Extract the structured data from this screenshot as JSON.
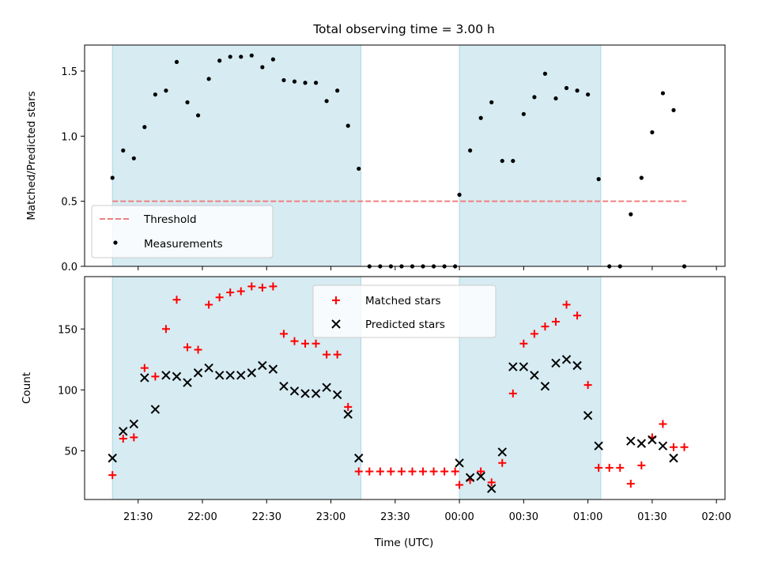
{
  "figure": {
    "title": "Total observing time = 3.00 h"
  },
  "time_axis": {
    "xlabel": "Time (UTC)",
    "tick_labels": [
      "21:30",
      "22:00",
      "22:30",
      "23:00",
      "23:30",
      "00:00",
      "00:30",
      "01:00",
      "01:30",
      "02:00"
    ],
    "tick_minutes": [
      1290,
      1320,
      1350,
      1380,
      1410,
      1440,
      1470,
      1500,
      1530,
      1560
    ],
    "xlim_minutes": [
      1265,
      1564
    ]
  },
  "colors": {
    "shade": "#add8e6",
    "threshold": "#f08080",
    "matched": "#ff0000",
    "predicted": "#000000",
    "measurement": "#000000"
  },
  "chart_data": [
    {
      "type": "scatter",
      "panel": "top",
      "title": "Total observing time = 3.00 h",
      "ylabel": "Matched/Predicted stars",
      "ylim": [
        0,
        1.7
      ],
      "yticks": [
        0.0,
        0.5,
        1.0,
        1.5
      ],
      "ytick_labels": [
        "0.0",
        "0.5",
        "1.0",
        "1.5"
      ],
      "legend": {
        "placement": "lower-left",
        "entries": [
          "Threshold",
          "Measurements"
        ]
      },
      "shaded_intervals": [
        [
          1278,
          1394
        ],
        [
          1440,
          1506
        ]
      ],
      "threshold": {
        "name": "Threshold",
        "value": 0.5,
        "x_range": [
          1278,
          1546
        ],
        "style": "dashed"
      },
      "series": [
        {
          "name": "Measurements",
          "x": [
            1278,
            1283,
            1288,
            1293,
            1298,
            1303,
            1308,
            1313,
            1318,
            1323,
            1328,
            1333,
            1338,
            1343,
            1348,
            1353,
            1358,
            1363,
            1368,
            1373,
            1378,
            1383,
            1388,
            1393,
            1398,
            1403,
            1408,
            1413,
            1418,
            1423,
            1428,
            1433,
            1438,
            1440,
            1445,
            1450,
            1455,
            1460,
            1465,
            1470,
            1475,
            1480,
            1485,
            1490,
            1495,
            1500,
            1505,
            1510,
            1515,
            1520,
            1525,
            1530,
            1535,
            1540,
            1545
          ],
          "y": [
            0.68,
            0.89,
            0.83,
            1.07,
            1.32,
            1.35,
            1.57,
            1.26,
            1.16,
            1.44,
            1.58,
            1.61,
            1.61,
            1.62,
            1.53,
            1.59,
            1.43,
            1.42,
            1.41,
            1.41,
            1.27,
            1.35,
            1.08,
            0.75,
            0.0,
            0.0,
            0.0,
            0.0,
            0.0,
            0.0,
            0.0,
            0.0,
            0.0,
            0.55,
            0.89,
            1.14,
            1.26,
            0.81,
            0.81,
            1.17,
            1.3,
            1.48,
            1.29,
            1.37,
            1.35,
            1.32,
            0.67,
            0.0,
            0.0,
            0.4,
            0.68,
            1.03,
            1.33,
            1.2,
            0.0
          ]
        }
      ]
    },
    {
      "type": "scatter",
      "panel": "bottom",
      "xlabel": "Time (UTC)",
      "ylabel": "Count",
      "ylim": [
        10,
        193
      ],
      "yticks": [
        50,
        100,
        150
      ],
      "ytick_labels": [
        "50",
        "100",
        "150"
      ],
      "legend": {
        "placement": "upper-center",
        "entries": [
          "Matched stars",
          "Predicted stars"
        ]
      },
      "shaded_intervals": [
        [
          1278,
          1394
        ],
        [
          1440,
          1506
        ]
      ],
      "series": [
        {
          "name": "Matched stars",
          "marker": "+",
          "x": [
            1278,
            1283,
            1288,
            1293,
            1298,
            1303,
            1308,
            1313,
            1318,
            1323,
            1328,
            1333,
            1338,
            1343,
            1348,
            1353,
            1358,
            1363,
            1368,
            1373,
            1378,
            1383,
            1388,
            1393,
            1398,
            1403,
            1408,
            1413,
            1418,
            1423,
            1428,
            1433,
            1438,
            1440,
            1445,
            1450,
            1455,
            1460,
            1465,
            1470,
            1475,
            1480,
            1485,
            1490,
            1495,
            1500,
            1505,
            1510,
            1515,
            1520,
            1525,
            1530,
            1535,
            1540,
            1545
          ],
          "y": [
            30,
            60,
            61,
            118,
            111,
            150,
            174,
            135,
            133,
            170,
            176,
            180,
            181,
            185,
            184,
            185,
            146,
            140,
            138,
            138,
            129,
            129,
            86,
            33,
            33,
            33,
            33,
            33,
            33,
            33,
            33,
            33,
            33,
            22,
            26,
            33,
            24,
            40,
            97,
            138,
            146,
            152,
            156,
            170,
            161,
            104,
            36,
            36,
            36,
            23,
            38,
            61,
            72,
            53,
            53
          ]
        },
        {
          "name": "Predicted stars",
          "marker": "x",
          "x": [
            1278,
            1283,
            1288,
            1293,
            1298,
            1303,
            1308,
            1313,
            1318,
            1323,
            1328,
            1333,
            1338,
            1343,
            1348,
            1353,
            1358,
            1363,
            1368,
            1373,
            1378,
            1383,
            1388,
            1393,
            1440,
            1445,
            1450,
            1455,
            1460,
            1465,
            1470,
            1475,
            1480,
            1485,
            1490,
            1495,
            1500,
            1505,
            1520,
            1525,
            1530,
            1535,
            1540
          ],
          "y": [
            44,
            66,
            72,
            110,
            84,
            112,
            111,
            106,
            114,
            118,
            112,
            112,
            112,
            114,
            120,
            117,
            103,
            99,
            97,
            97,
            102,
            96,
            80,
            44,
            40,
            28,
            29,
            19,
            49,
            119,
            119,
            112,
            103,
            122,
            125,
            120,
            79,
            54,
            58,
            56,
            59,
            54,
            44
          ]
        }
      ]
    }
  ]
}
